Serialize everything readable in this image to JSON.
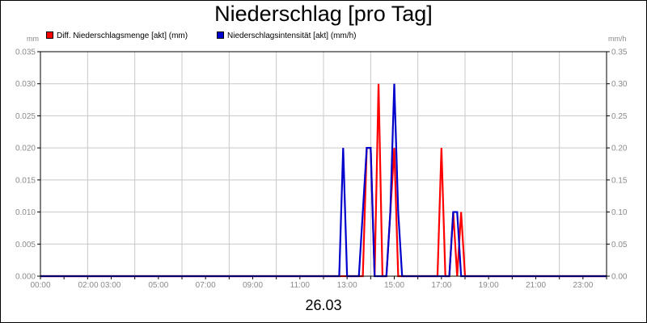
{
  "chart_data": {
    "type": "line",
    "title": "Niederschlag [pro Tag]",
    "left_unit": "mm",
    "right_unit": "mm/h",
    "xlabel": "26.03",
    "x_tick_labels": [
      "00:00",
      "02:00 03:00",
      "05:00",
      "07:00",
      "09:00",
      "11:00",
      "13:00",
      "15:00",
      "17:00",
      "19:00",
      "21:00",
      "23:00"
    ],
    "y_left_ticks": [
      "0.000",
      "0.005",
      "0.010",
      "0.015",
      "0.020",
      "0.025",
      "0.030",
      "0.035"
    ],
    "y_right_ticks": [
      "0.00",
      "0.05",
      "0.10",
      "0.15",
      "0.20",
      "0.25",
      "0.30",
      "0.35"
    ],
    "ylim_left": [
      0,
      0.035
    ],
    "ylim_right": [
      0,
      0.35
    ],
    "xlim_hours": [
      0,
      24
    ],
    "grid": true,
    "legend_position": "top-left",
    "series": [
      {
        "name": "Diff. Niederschlagsmenge [akt] (mm)",
        "axis": "left",
        "color": "#ff0000",
        "points": [
          {
            "t": "00:00",
            "v": 0
          },
          {
            "t": "13:40",
            "v": 0
          },
          {
            "t": "13:50",
            "v": 0.02
          },
          {
            "t": "14:00",
            "v": 0.02
          },
          {
            "t": "14:10",
            "v": 0
          },
          {
            "t": "14:20",
            "v": 0.03
          },
          {
            "t": "14:30",
            "v": 0
          },
          {
            "t": "14:40",
            "v": 0
          },
          {
            "t": "14:50",
            "v": 0.01
          },
          {
            "t": "15:00",
            "v": 0.02
          },
          {
            "t": "15:10",
            "v": 0
          },
          {
            "t": "16:50",
            "v": 0
          },
          {
            "t": "17:00",
            "v": 0.02
          },
          {
            "t": "17:10",
            "v": 0
          },
          {
            "t": "17:20",
            "v": 0
          },
          {
            "t": "17:30",
            "v": 0.01
          },
          {
            "t": "17:40",
            "v": 0
          },
          {
            "t": "17:50",
            "v": 0.01
          },
          {
            "t": "18:00",
            "v": 0
          },
          {
            "t": "24:00",
            "v": 0
          }
        ]
      },
      {
        "name": "Niederschlagsintensität [akt] (mm/h)",
        "axis": "right",
        "color": "#0000cc",
        "points": [
          {
            "t": "00:00",
            "v": 0
          },
          {
            "t": "12:40",
            "v": 0
          },
          {
            "t": "12:50",
            "v": 0.2
          },
          {
            "t": "13:00",
            "v": 0
          },
          {
            "t": "13:30",
            "v": 0
          },
          {
            "t": "13:40",
            "v": 0.1
          },
          {
            "t": "13:50",
            "v": 0.2
          },
          {
            "t": "14:00",
            "v": 0.2
          },
          {
            "t": "14:10",
            "v": 0
          },
          {
            "t": "14:40",
            "v": 0
          },
          {
            "t": "14:50",
            "v": 0.1
          },
          {
            "t": "15:00",
            "v": 0.3
          },
          {
            "t": "15:10",
            "v": 0.1
          },
          {
            "t": "15:20",
            "v": 0
          },
          {
            "t": "17:20",
            "v": 0
          },
          {
            "t": "17:30",
            "v": 0.1
          },
          {
            "t": "17:40",
            "v": 0.1
          },
          {
            "t": "17:50",
            "v": 0
          },
          {
            "t": "24:00",
            "v": 0
          }
        ]
      }
    ]
  }
}
